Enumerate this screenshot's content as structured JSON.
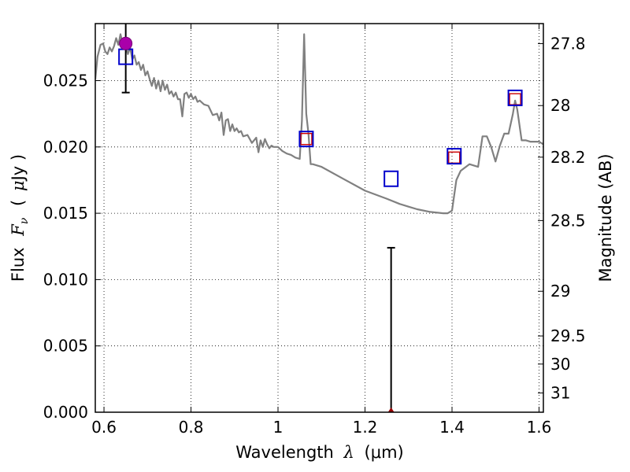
{
  "chart_data": {
    "type": "line",
    "xlabel_text": "Wavelength",
    "xlabel_math": "λ",
    "xlabel_unit": "(μm)",
    "ylabel_text": "Flux",
    "ylabel_math": "F",
    "ylabel_sub": "ν",
    "ylabel_unit_open": "(",
    "ylabel_unit_mu": "μ",
    "ylabel_unit_rest": "Jy )",
    "y2label": "Magnitude (AB)",
    "xlim": [
      0.58,
      1.61
    ],
    "ylim": [
      0.0,
      0.0293
    ],
    "grid": true,
    "x_ticks": [
      {
        "v": 0.6,
        "label": "0.6"
      },
      {
        "v": 0.8,
        "label": "0.8"
      },
      {
        "v": 1.0,
        "label": "1"
      },
      {
        "v": 1.2,
        "label": "1.2"
      },
      {
        "v": 1.4,
        "label": "1.4"
      },
      {
        "v": 1.6,
        "label": "1.6"
      }
    ],
    "y_ticks": [
      {
        "v": 0.0,
        "label": "0.000"
      },
      {
        "v": 0.005,
        "label": "0.005"
      },
      {
        "v": 0.01,
        "label": "0.010"
      },
      {
        "v": 0.015,
        "label": "0.015"
      },
      {
        "v": 0.02,
        "label": "0.020"
      },
      {
        "v": 0.025,
        "label": "0.025"
      }
    ],
    "y2_ticks": [
      {
        "flux": 0.02779,
        "label": "27.8"
      },
      {
        "flux": 0.02312,
        "label": "28"
      },
      {
        "flux": 0.01923,
        "label": "28.2"
      },
      {
        "flux": 0.01445,
        "label": "28.5"
      },
      {
        "flux": 0.00912,
        "label": "29"
      },
      {
        "flux": 0.00575,
        "label": "29.5"
      },
      {
        "flux": 0.00363,
        "label": "30"
      },
      {
        "flux": 0.00145,
        "label": "31"
      }
    ],
    "series": [
      {
        "kind": "model",
        "color": "#808080",
        "x": [
          0.58,
          0.585,
          0.592,
          0.598,
          0.603,
          0.608,
          0.613,
          0.618,
          0.623,
          0.628,
          0.633,
          0.638,
          0.642,
          0.646,
          0.65,
          0.655,
          0.66,
          0.665,
          0.67,
          0.675,
          0.68,
          0.685,
          0.69,
          0.695,
          0.7,
          0.705,
          0.71,
          0.715,
          0.72,
          0.725,
          0.73,
          0.735,
          0.74,
          0.745,
          0.75,
          0.755,
          0.76,
          0.765,
          0.77,
          0.775,
          0.78,
          0.785,
          0.79,
          0.795,
          0.8,
          0.805,
          0.81,
          0.815,
          0.82,
          0.83,
          0.84,
          0.85,
          0.86,
          0.865,
          0.87,
          0.875,
          0.88,
          0.885,
          0.89,
          0.895,
          0.9,
          0.905,
          0.91,
          0.915,
          0.92,
          0.93,
          0.94,
          0.95,
          0.955,
          0.96,
          0.965,
          0.97,
          0.975,
          0.98,
          0.985,
          0.99,
          1.0,
          1.01,
          1.02,
          1.03,
          1.04,
          1.05,
          1.055,
          1.06,
          1.065,
          1.07,
          1.075,
          1.08,
          1.1,
          1.15,
          1.2,
          1.25,
          1.28,
          1.3,
          1.32,
          1.35,
          1.38,
          1.39,
          1.395,
          1.4,
          1.41,
          1.42,
          1.44,
          1.46,
          1.47,
          1.48,
          1.49,
          1.5,
          1.51,
          1.52,
          1.53,
          1.54,
          1.545,
          1.55,
          1.56,
          1.57,
          1.58,
          1.6,
          1.61
        ],
        "y": [
          0.0251,
          0.0268,
          0.0277,
          0.0278,
          0.0272,
          0.027,
          0.0275,
          0.0272,
          0.0276,
          0.0282,
          0.0277,
          0.0285,
          0.0279,
          0.0274,
          0.0276,
          0.027,
          0.0275,
          0.0266,
          0.0269,
          0.0262,
          0.0264,
          0.0258,
          0.0262,
          0.0254,
          0.0257,
          0.0251,
          0.0246,
          0.0252,
          0.0244,
          0.025,
          0.0242,
          0.025,
          0.0243,
          0.0247,
          0.024,
          0.0242,
          0.0238,
          0.0241,
          0.0236,
          0.0236,
          0.0223,
          0.024,
          0.0241,
          0.0237,
          0.024,
          0.0236,
          0.0238,
          0.0234,
          0.0235,
          0.0232,
          0.0231,
          0.0224,
          0.0225,
          0.022,
          0.0226,
          0.0209,
          0.022,
          0.0221,
          0.0212,
          0.0217,
          0.0212,
          0.0214,
          0.0211,
          0.0212,
          0.0208,
          0.0209,
          0.0203,
          0.0207,
          0.0196,
          0.0205,
          0.02,
          0.0206,
          0.0202,
          0.0199,
          0.0201,
          0.02,
          0.02,
          0.0197,
          0.0195,
          0.0194,
          0.0192,
          0.0191,
          0.022,
          0.0285,
          0.0225,
          0.021,
          0.0187,
          0.0187,
          0.0185,
          0.0176,
          0.0167,
          0.0161,
          0.0157,
          0.0155,
          0.0153,
          0.0151,
          0.015,
          0.015,
          0.0151,
          0.0152,
          0.0175,
          0.0182,
          0.0187,
          0.0185,
          0.0208,
          0.0208,
          0.02,
          0.0189,
          0.0201,
          0.021,
          0.021,
          0.0225,
          0.0235,
          0.0228,
          0.0205,
          0.0205,
          0.0204,
          0.0204,
          0.0202
        ]
      },
      {
        "kind": "observed",
        "color": "#0000cc",
        "x": [
          0.65,
          1.065,
          1.26,
          1.405,
          1.545
        ],
        "y": [
          0.0268,
          0.0206,
          0.0176,
          0.0193,
          0.0237
        ]
      },
      {
        "kind": "model_band",
        "color": "#cc0000",
        "x": [
          1.065,
          1.405,
          1.545
        ],
        "y": [
          0.0206,
          0.0192,
          0.0236
        ]
      },
      {
        "kind": "photometry",
        "color": "#aa00aa",
        "x": [
          0.65
        ],
        "y": [
          0.0278
        ],
        "yerr_low": [
          0.0241
        ],
        "yerr_high": [
          0.0293
        ]
      },
      {
        "kind": "upper_limit",
        "color": "#990000",
        "x": [
          1.26
        ],
        "y": [
          0.0
        ],
        "yerr_high": [
          0.0124
        ]
      }
    ]
  }
}
